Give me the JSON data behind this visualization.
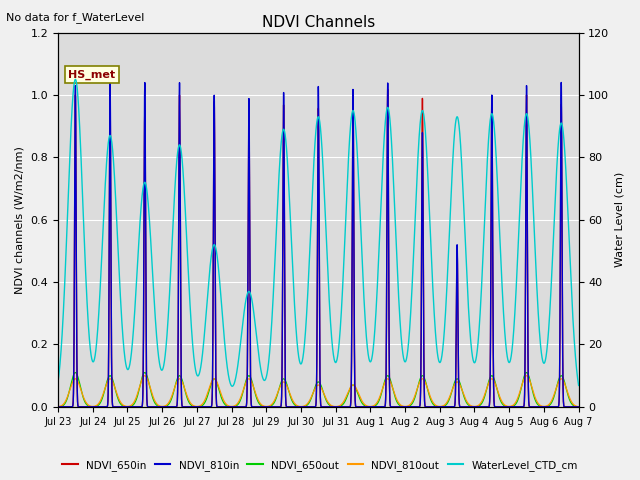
{
  "title": "NDVI Channels",
  "subtitle": "No data for f_WaterLevel",
  "ylabel_left": "NDVI channels (W/m2/nm)",
  "ylabel_right": "Water Level (cm)",
  "ylim_left": [
    0,
    1.2
  ],
  "ylim_right": [
    0,
    120
  ],
  "annotation": "HS_met",
  "x_tick_labels": [
    "Jul 23",
    "Jul 24",
    "Jul 25",
    "Jul 26",
    "Jul 27",
    "Jul 28",
    "Jul 29",
    "Jul 30",
    "Jul 31",
    "Aug 1",
    "Aug 2",
    "Aug 3",
    "Aug 4",
    "Aug 5",
    "Aug 6",
    "Aug 7"
  ],
  "colors": {
    "NDVI_650in": "#cc0000",
    "NDVI_810in": "#0000cc",
    "NDVI_650out": "#00cc00",
    "NDVI_810out": "#ff9900",
    "WaterLevel_CTD_cm": "#00cccc"
  },
  "fig_bg": "#f0f0f0",
  "plot_bg": "#dcdcdc",
  "peaks_810in": [
    1.03,
    1.04,
    1.04,
    1.04,
    1.0,
    0.99,
    1.01,
    1.03,
    1.02,
    1.04,
    0.88,
    0.52,
    1.0,
    1.03,
    1.04
  ],
  "peaks_650in": [
    1.0,
    0.97,
    0.95,
    1.0,
    0.98,
    0.94,
    0.97,
    0.96,
    1.0,
    1.02,
    0.99,
    0.5,
    0.98,
    1.0,
    0.97
  ],
  "peaks_650out": [
    0.11,
    0.1,
    0.11,
    0.1,
    0.09,
    0.1,
    0.09,
    0.08,
    0.07,
    0.1,
    0.1,
    0.09,
    0.1,
    0.11,
    0.1
  ],
  "peaks_810out": [
    0.09,
    0.09,
    0.1,
    0.09,
    0.09,
    0.09,
    0.08,
    0.07,
    0.07,
    0.09,
    0.09,
    0.08,
    0.09,
    0.1,
    0.09
  ],
  "wl_peaks": [
    1.05,
    0.87,
    0.72,
    0.84,
    0.52,
    0.37,
    0.89,
    0.93,
    0.95,
    0.96,
    0.95,
    0.93,
    0.94,
    0.94,
    0.91
  ],
  "n_days": 15
}
